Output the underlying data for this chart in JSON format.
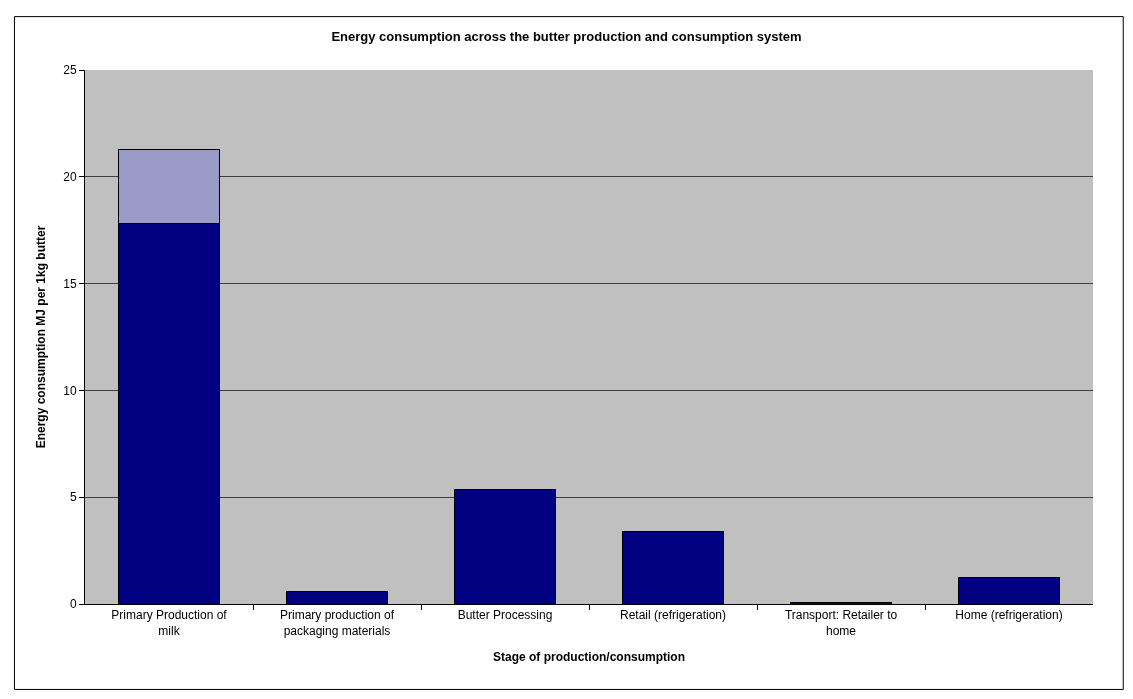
{
  "chart_data": {
    "type": "bar",
    "title": "Energy consumption across the butter production and consumption system",
    "xlabel": "Stage of production/consumption",
    "ylabel": "Energy consumption MJ per 1kg butter",
    "categories": [
      "Primary Production of milk",
      "Primary production of packaging materials",
      "Butter Processing",
      "Retail (refrigeration)",
      "Transport: Retailer to home",
      "Home (refrigeration)"
    ],
    "series": [
      {
        "color": "#000080",
        "values": [
          17.8,
          0.58,
          5.36,
          3.4,
          0.05,
          1.24
        ]
      },
      {
        "color": "#9a9ac8",
        "values": [
          3.5,
          null,
          null,
          null,
          null,
          null
        ]
      }
    ],
    "stacked": true,
    "ylim": [
      0,
      25
    ],
    "yticks": [
      0,
      5,
      10,
      15,
      20,
      25
    ],
    "grid": "y"
  }
}
